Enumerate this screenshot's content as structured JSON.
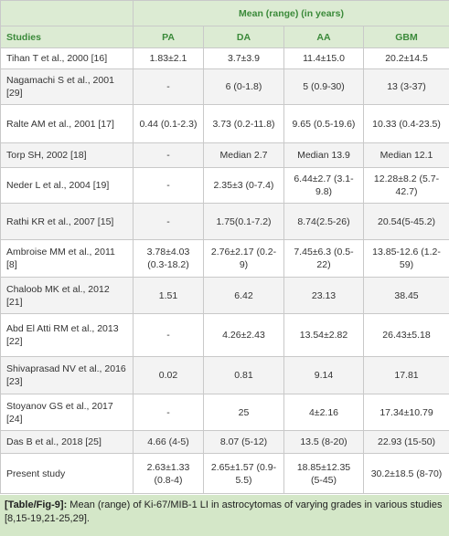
{
  "table": {
    "group_header": "Mean (range) (in years)",
    "columns": [
      "Studies",
      "PA",
      "DA",
      "AA",
      "GBM"
    ],
    "rows": [
      [
        "Tihan T et al., 2000 [16]",
        "1.83±2.1",
        "3.7±3.9",
        "11.4±15.0",
        "20.2±14.5"
      ],
      [
        "Nagamachi S et al., 2001 [29]",
        "-",
        "6 (0-1.8)",
        "5 (0.9-30)",
        "13 (3-37)"
      ],
      [
        "Ralte AM et al., 2001 [17]",
        "0.44 (0.1-2.3)",
        "3.73 (0.2-11.8)",
        "9.65 (0.5-19.6)",
        "10.33 (0.4-23.5)"
      ],
      [
        "Torp SH, 2002 [18]",
        "-",
        "Median 2.7",
        "Median 13.9",
        "Median 12.1"
      ],
      [
        "Neder L et al., 2004 [19]",
        "-",
        "2.35±3 (0-7.4)",
        "6.44±2.7 (3.1-9.8)",
        "12.28±8.2 (5.7-42.7)"
      ],
      [
        "Rathi KR et al., 2007 [15]",
        "-",
        "1.75(0.1-7.2)",
        "8.74(2.5-26)",
        "20.54(5-45.2)"
      ],
      [
        "Ambroise MM et al., 2011 [8]",
        "3.78±4.03 (0.3-18.2)",
        "2.76±2.17 (0.2-9)",
        "7.45±6.3 (0.5-22)",
        "13.85-12.6 (1.2-59)"
      ],
      [
        "Chaloob MK et al., 2012 [21]",
        "1.51",
        "6.42",
        "23.13",
        "38.45"
      ],
      [
        "Abd El Atti RM et al., 2013 [22]",
        "-",
        "4.26±2.43",
        "13.54±2.82",
        "26.43±5.18"
      ],
      [
        "Shivaprasad NV et al., 2016 [23]",
        "0.02",
        "0.81",
        "9.14",
        "17.81"
      ],
      [
        "Stoyanov GS et al., 2017 [24]",
        "-",
        "25",
        "4±2.16",
        "17.34±10.79"
      ],
      [
        "Das B et al., 2018 [25]",
        "4.66 (4-5)",
        "8.07 (5-12)",
        "13.5 (8-20)",
        "22.93 (15-50)"
      ],
      [
        "Present study",
        "2.63±1.33 (0.8-4)",
        "2.65±1.57 (0.9-5.5)",
        "18.85±12.35 (5-45)",
        "30.2±18.5 (8-70)"
      ]
    ],
    "caption_label": "[Table/Fig-9]:",
    "caption_text": "Mean (range) of Ki-67/MIB-1 LI in astrocytomas of varying grades in various studies [8,15-19,21-25,29]."
  }
}
